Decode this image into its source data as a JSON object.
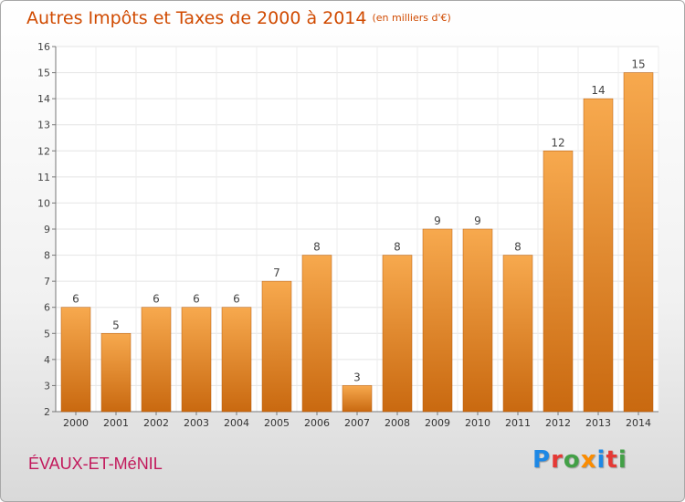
{
  "header": {
    "title": "Autres Impôts et Taxes de 2000 à 2014",
    "unit": "(en milliers d'€)"
  },
  "footer": {
    "commune": "ÉVAUX-ET-MéNIL",
    "logo": {
      "letters": [
        "P",
        "r",
        "o",
        "x",
        "i",
        "t",
        "i"
      ],
      "colors": [
        "#1e88e5",
        "#e53935",
        "#43a047",
        "#fb8c00",
        "#1e88e5",
        "#e53935",
        "#43a047"
      ]
    }
  },
  "chart_data": {
    "type": "bar",
    "title": "Autres Impôts et Taxes de 2000 à 2014",
    "categories": [
      "2000",
      "2001",
      "2002",
      "2003",
      "2004",
      "2005",
      "2006",
      "2007",
      "2008",
      "2009",
      "2010",
      "2011",
      "2012",
      "2013",
      "2014"
    ],
    "values": [
      6,
      5,
      6,
      6,
      6,
      7,
      8,
      3,
      8,
      9,
      9,
      8,
      12,
      14,
      15
    ],
    "ylim": [
      2,
      16
    ],
    "yticks": [
      2,
      3,
      4,
      5,
      6,
      7,
      8,
      9,
      10,
      11,
      12,
      13,
      14,
      15,
      16
    ],
    "grid": true,
    "bar_color_top": "#f7a94e",
    "bar_color_bottom": "#c96910"
  }
}
